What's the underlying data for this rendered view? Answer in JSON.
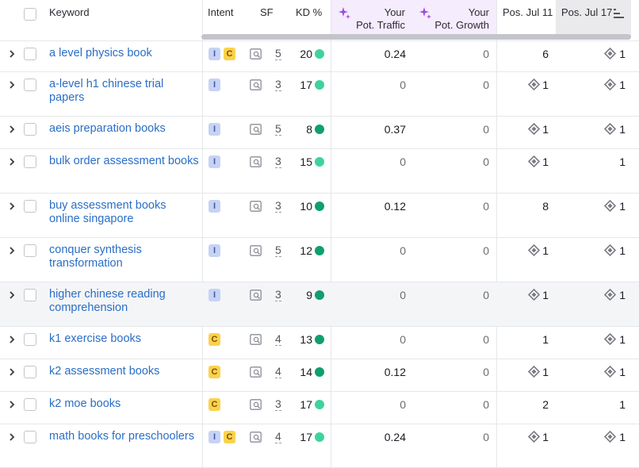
{
  "header": {
    "keyword": "Keyword",
    "intent": "Intent",
    "sf": "SF",
    "kd": "KD %",
    "traffic_l1": "Your",
    "traffic_l2": "Pot. Traffic",
    "growth_l1": "Your",
    "growth_l2": "Pot. Growth",
    "pos1": "Pos. Jul 11",
    "pos2": "Pos. Jul 17"
  },
  "colors": {
    "link": "#2a6ec6",
    "kd_light": "#3fd39c",
    "kd_dark": "#0f9f6e",
    "intent_informational": "#c6d3f4",
    "intent_commercial": "#fbd24c",
    "ai_sparkle": "#9a4ee0"
  },
  "rows": [
    {
      "keyword": "a level physics book",
      "intents": [
        "I",
        "C"
      ],
      "sf": "5",
      "kd": "20",
      "kd_color": "light",
      "traffic": "0.24",
      "growth": "0",
      "pos1": "6",
      "pos1_feature": false,
      "pos2": "1",
      "pos2_feature": true
    },
    {
      "keyword": "a-level h1 chinese trial papers",
      "intents": [
        "I"
      ],
      "sf": "3",
      "kd": "17",
      "kd_color": "light",
      "traffic": "0",
      "growth": "0",
      "pos1": "1",
      "pos1_feature": true,
      "pos2": "1",
      "pos2_feature": true
    },
    {
      "keyword": "aeis preparation books",
      "intents": [
        "I"
      ],
      "sf": "5",
      "kd": "8",
      "kd_color": "dark",
      "traffic": "0.37",
      "growth": "0",
      "pos1": "1",
      "pos1_feature": true,
      "pos2": "1",
      "pos2_feature": true
    },
    {
      "keyword": "bulk order assessment books",
      "intents": [
        "I"
      ],
      "sf": "3",
      "kd": "15",
      "kd_color": "light",
      "traffic": "0",
      "growth": "0",
      "pos1": "1",
      "pos1_feature": true,
      "pos2": "1",
      "pos2_feature": false
    },
    {
      "keyword": "buy assessment books online singapore",
      "intents": [
        "I"
      ],
      "sf": "3",
      "kd": "10",
      "kd_color": "dark",
      "traffic": "0.12",
      "growth": "0",
      "pos1": "8",
      "pos1_feature": false,
      "pos2": "1",
      "pos2_feature": true
    },
    {
      "keyword": "conquer synthesis transformation",
      "intents": [
        "I"
      ],
      "sf": "5",
      "kd": "12",
      "kd_color": "dark",
      "traffic": "0",
      "growth": "0",
      "pos1": "1",
      "pos1_feature": true,
      "pos2": "1",
      "pos2_feature": true
    },
    {
      "keyword": "higher chinese reading comprehension",
      "intents": [
        "I"
      ],
      "sf": "3",
      "kd": "9",
      "kd_color": "dark",
      "traffic": "0",
      "growth": "0",
      "pos1": "1",
      "pos1_feature": true,
      "pos2": "1",
      "pos2_feature": true
    },
    {
      "keyword": "k1 exercise books",
      "intents": [
        "C"
      ],
      "sf": "4",
      "kd": "13",
      "kd_color": "dark",
      "traffic": "0",
      "growth": "0",
      "pos1": "1",
      "pos1_feature": false,
      "pos2": "1",
      "pos2_feature": true
    },
    {
      "keyword": "k2 assessment books",
      "intents": [
        "C"
      ],
      "sf": "4",
      "kd": "14",
      "kd_color": "dark",
      "traffic": "0.12",
      "growth": "0",
      "pos1": "1",
      "pos1_feature": true,
      "pos2": "1",
      "pos2_feature": true
    },
    {
      "keyword": "k2 moe books",
      "intents": [
        "C"
      ],
      "sf": "3",
      "kd": "17",
      "kd_color": "light",
      "traffic": "0",
      "growth": "0",
      "pos1": "2",
      "pos1_feature": false,
      "pos2": "1",
      "pos2_feature": false
    },
    {
      "keyword": "math books for preschoolers",
      "intents": [
        "I",
        "C"
      ],
      "sf": "4",
      "kd": "17",
      "kd_color": "light",
      "traffic": "0.24",
      "growth": "0",
      "pos1": "1",
      "pos1_feature": true,
      "pos2": "1",
      "pos2_feature": true
    }
  ]
}
